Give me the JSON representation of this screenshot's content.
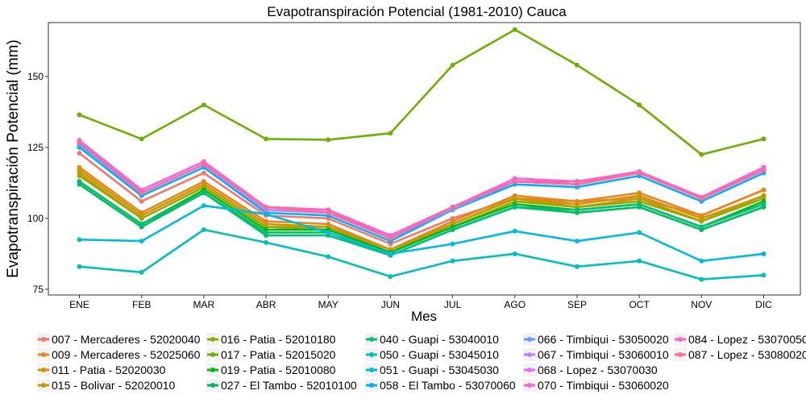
{
  "chart_data": {
    "type": "line",
    "title": "Evapotranspiración Potencial (1981-2010)  Cauca",
    "xlabel": "Mes",
    "ylabel": "Evapotranspiración Potencial  (mm)",
    "categories": [
      "ENE",
      "FEB",
      "MAR",
      "ABR",
      "MAY",
      "JUN",
      "JUL",
      "AGO",
      "SEP",
      "OCT",
      "NOV",
      "DIC"
    ],
    "ylim": [
      73,
      169
    ],
    "yticks": [
      75,
      100,
      125,
      150
    ],
    "grid": false,
    "legend_position": "bottom",
    "series": [
      {
        "name": "007 - Mercaderes - 52020040",
        "color": "#F8766D",
        "values": [
          123,
          106,
          116,
          101,
          100,
          91,
          100,
          107,
          106,
          107,
          101,
          110
        ]
      },
      {
        "name": "009 - Mercaderes - 52025060",
        "color": "#E7861B",
        "values": [
          118,
          102,
          113,
          99,
          98,
          89,
          99,
          108,
          106,
          109,
          101,
          110
        ]
      },
      {
        "name": "011 - Patia - 52020030",
        "color": "#D39200",
        "values": [
          117,
          101,
          112,
          98,
          97,
          89,
          98,
          107,
          105,
          108,
          100,
          108
        ]
      },
      {
        "name": "015 - Bolivar - 52020010",
        "color": "#BB9D00",
        "values": [
          116,
          100,
          111,
          97,
          97,
          88,
          98,
          107,
          104,
          107,
          99,
          108
        ]
      },
      {
        "name": "016 - Patia - 52010180",
        "color": "#9CA700",
        "values": [
          115,
          100,
          111,
          97,
          96,
          88,
          97,
          106,
          104,
          106,
          99,
          107
        ]
      },
      {
        "name": "017 - Patia - 52015020",
        "color": "#6BB100",
        "values": [
          136.5,
          128,
          140,
          128,
          127.7,
          130,
          154,
          166.5,
          154,
          140,
          122.5,
          128
        ]
      },
      {
        "name": "019 - Patia - 52010080",
        "color": "#00B81F",
        "values": [
          113,
          98,
          110,
          96,
          96,
          88,
          97,
          105,
          103,
          105,
          97,
          106
        ]
      },
      {
        "name": "027 - El Tambo - 52010100",
        "color": "#00BC59",
        "values": [
          112,
          97,
          109,
          95,
          95,
          87,
          96,
          104,
          102,
          104,
          96,
          104
        ]
      },
      {
        "name": "040 - Guapi - 53040010",
        "color": "#00BF7D",
        "values": [
          113,
          98,
          109,
          94,
          94,
          87,
          96,
          104,
          103,
          105,
          97,
          105
        ]
      },
      {
        "name": "050 - Guapi - 53045010",
        "color": "#00C0B8",
        "values": [
          83,
          81,
          96,
          91.5,
          86.5,
          79.5,
          85,
          87.5,
          83,
          85,
          78.5,
          80
        ]
      },
      {
        "name": "051 - Guapi - 53045030",
        "color": "#00BCD8",
        "values": [
          92.5,
          92,
          104.5,
          101.5,
          95,
          87.5,
          91,
          95.5,
          92,
          95,
          85,
          87.5
        ]
      },
      {
        "name": "058 - El Tambo - 53070060",
        "color": "#00B0F6",
        "values": [
          125,
          108,
          118,
          102,
          101,
          92,
          103,
          112,
          111,
          115,
          106,
          116
        ]
      },
      {
        "name": "066 - Timbiqui - 53050020",
        "color": "#619CFF",
        "values": [
          126,
          109,
          119,
          103,
          102,
          93,
          103,
          113,
          112,
          116,
          107,
          117
        ]
      },
      {
        "name": "067 - Timbiqui - 53060010",
        "color": "#B983FF",
        "values": [
          127,
          109,
          119,
          103,
          102,
          93,
          104,
          113,
          112,
          116,
          107,
          117
        ]
      },
      {
        "name": "068 - Lopez - 53070030",
        "color": "#E76BF3",
        "values": [
          127,
          110,
          120,
          104,
          103,
          94,
          104,
          114,
          113,
          116,
          107,
          118
        ]
      },
      {
        "name": "070 - Timbiqui - 53060020",
        "color": "#F763E0",
        "values": [
          127.5,
          110,
          120,
          104,
          103,
          94,
          104,
          114,
          113,
          116.5,
          107.5,
          118
        ]
      },
      {
        "name": "084 - Lopez - 53070050",
        "color": "#FF62BC",
        "values": [
          127,
          109,
          119,
          104,
          103,
          93,
          104,
          113,
          113,
          116,
          107,
          117
        ]
      },
      {
        "name": "087 - Lopez - 53080020",
        "color": "#FF6A98",
        "values": [
          127,
          109,
          119,
          104,
          102,
          93,
          104,
          113,
          112,
          116,
          107,
          117
        ]
      }
    ]
  }
}
